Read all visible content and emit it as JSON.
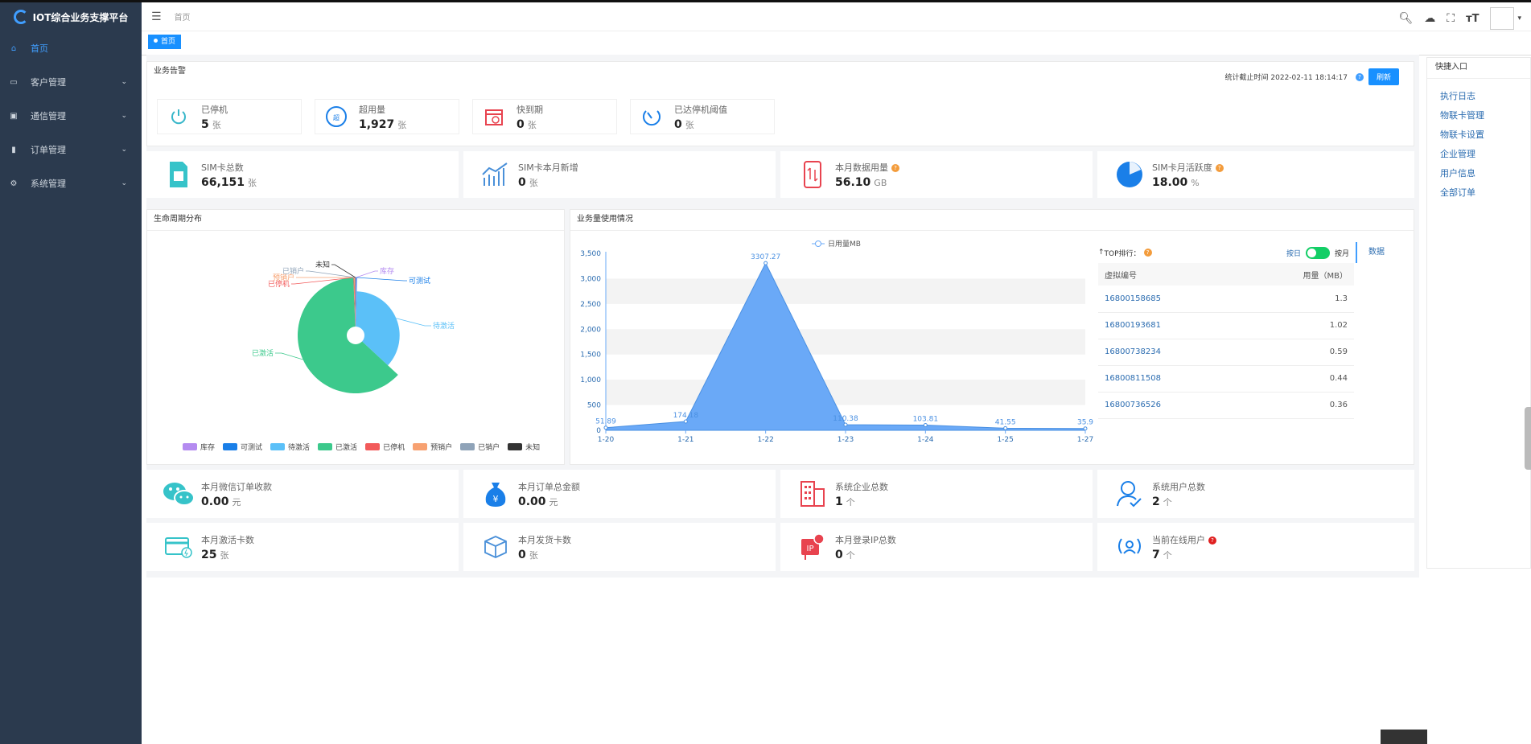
{
  "app": {
    "title": "IOT综合业务支撑平台"
  },
  "sidebar": {
    "items": [
      {
        "label": "首页",
        "icon": "home-icon",
        "active": true
      },
      {
        "label": "客户管理",
        "icon": "monitor-icon"
      },
      {
        "label": "通信管理",
        "icon": "sim-icon"
      },
      {
        "label": "订单管理",
        "icon": "bar-chart-icon"
      },
      {
        "label": "系统管理",
        "icon": "gear-icon"
      }
    ]
  },
  "header": {
    "breadcrumb": "首页"
  },
  "tags": [
    {
      "label": "首页"
    }
  ],
  "alerts": {
    "title": "业务告警",
    "time_label": "统计截止时间 2022-02-11 18:14:17",
    "refresh_label": "刷新",
    "items": [
      {
        "label": "已停机",
        "value": "5",
        "unit": "张"
      },
      {
        "label": "超用量",
        "value": "1,927",
        "unit": "张"
      },
      {
        "label": "快到期",
        "value": "0",
        "unit": "张"
      },
      {
        "label": "已达停机阈值",
        "value": "0",
        "unit": "张"
      }
    ]
  },
  "summary": [
    {
      "label": "SIM卡总数",
      "value": "66,151",
      "unit": "张"
    },
    {
      "label": "SIM卡本月新增",
      "value": "0",
      "unit": "张"
    },
    {
      "label": "本月数据用量",
      "value": "56.10",
      "unit": "GB"
    },
    {
      "label": "SIM卡月活跃度",
      "value": "18.00",
      "unit": "%"
    }
  ],
  "lifecycle": {
    "title": "生命周期分布",
    "chart_data": {
      "type": "pie",
      "labels": [
        "库存",
        "可测试",
        "待激活",
        "已激活",
        "已停机",
        "预销户",
        "已销户",
        "未知"
      ],
      "values": [
        0.2,
        0.2,
        36.5,
        62.5,
        0.2,
        0.2,
        0.1,
        0.1
      ],
      "colors": [
        "#b48bf0",
        "#1a7fe8",
        "#5bc0f8",
        "#3cc98c",
        "#f25a5a",
        "#f7a171",
        "#8fa3b8",
        "#333333"
      ]
    }
  },
  "usage": {
    "title": "业务量使用情况",
    "chart_data": {
      "type": "area",
      "legend": "日用量MB",
      "x": [
        "1-20",
        "1-21",
        "1-22",
        "1-23",
        "1-24",
        "1-25",
        "1-27"
      ],
      "values": [
        51.89,
        174.18,
        3307.27,
        110.38,
        103.81,
        41.55,
        35.9
      ],
      "value_labels": [
        "51.89",
        "174.18",
        "3307.27",
        "110.38",
        "103.81",
        "41.55",
        "35.9"
      ],
      "yticks": [
        "0",
        "500",
        "1,000",
        "1,500",
        "2,000",
        "2,500",
        "3,000",
        "3,500"
      ],
      "ylim": [
        0,
        3500
      ]
    },
    "top": {
      "title": "TOP排行：",
      "toggle_left": "按日",
      "toggle_right": "按月",
      "tab": "数据",
      "col_id": "虚拟编号",
      "col_usage": "用量（MB）",
      "rows": [
        {
          "id": "16800158685",
          "usage": "1.3"
        },
        {
          "id": "16800193681",
          "usage": "1.02"
        },
        {
          "id": "16800738234",
          "usage": "0.59"
        },
        {
          "id": "16800811508",
          "usage": "0.44"
        },
        {
          "id": "16800736526",
          "usage": "0.36"
        }
      ]
    }
  },
  "bottom1": [
    {
      "label": "本月微信订单收款",
      "value": "0.00",
      "unit": "元"
    },
    {
      "label": "本月订单总金额",
      "value": "0.00",
      "unit": "元"
    },
    {
      "label": "系统企业总数",
      "value": "1",
      "unit": "个"
    },
    {
      "label": "系统用户总数",
      "value": "2",
      "unit": "个"
    }
  ],
  "bottom2": [
    {
      "label": "本月激活卡数",
      "value": "25",
      "unit": "张"
    },
    {
      "label": "本月发货卡数",
      "value": "0",
      "unit": "张"
    },
    {
      "label": "本月登录IP总数",
      "value": "0",
      "unit": "个"
    },
    {
      "label": "当前在线用户",
      "value": "7",
      "unit": "个"
    }
  ],
  "quick": {
    "title": "快捷入口",
    "items": [
      "执行日志",
      "物联卡管理",
      "物联卡设置",
      "企业管理",
      "用户信息",
      "全部订单"
    ]
  }
}
